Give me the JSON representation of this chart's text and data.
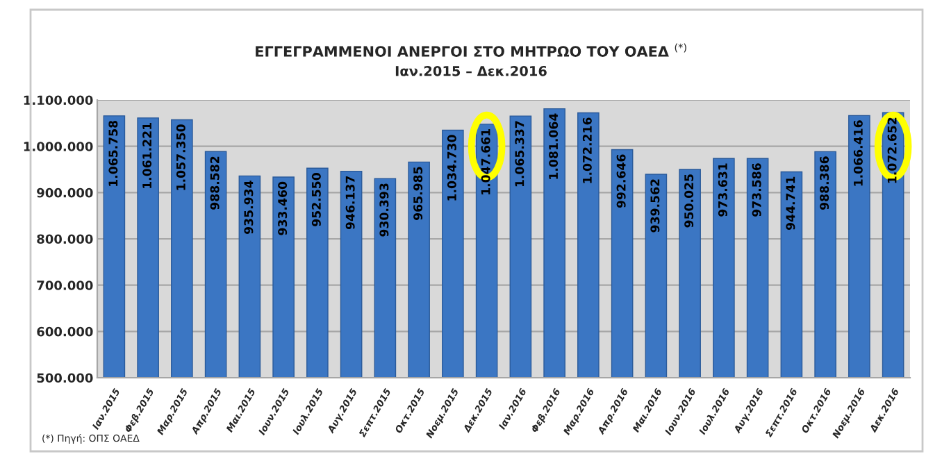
{
  "chart_data": {
    "type": "bar",
    "title": "ΕΓΓΕΓΡΑΜΜΕΝΟΙ ΑΝΕΡΓΟΙ ΣΤΟ ΜΗΤΡΩΟ ΤΟΥ ΟΑΕΔ $^{(*)}$",
    "subtitle": "Ιαν.2015 – Δεκ.2016",
    "categories": [
      "Ιαν.2015",
      "Φεβ.2015",
      "Μαρ.2015",
      "Απρ.2015",
      "Μαι.2015",
      "Ιουν.2015",
      "Ιουλ.2015",
      "Αυγ.2015",
      "Σεπτ.2015",
      "Οκτ.2015",
      "Νοεμ.2015",
      "Δεκ.2015",
      "Ιαν.2016",
      "Φεβ.2016",
      "Μαρ.2016",
      "Απρ.2016",
      "Μαι.2016",
      "Ιουν.2016",
      "Ιουλ.2016",
      "Αυγ.2016",
      "Σεπτ.2016",
      "Οκτ.2016",
      "Νοεμ.2016",
      "Δεκ.2016"
    ],
    "values": [
      1065758,
      1061221,
      1057350,
      988582,
      935934,
      933460,
      952550,
      946137,
      930393,
      965985,
      1034730,
      1047661,
      1065337,
      1081064,
      1072216,
      992646,
      939562,
      950025,
      973631,
      973586,
      944741,
      988386,
      1066416,
      1072652
    ],
    "value_labels": [
      "1.065.758",
      "1.061.221",
      "1.057.350",
      "988.582",
      "935.934",
      "933.460",
      "952.550",
      "946.137",
      "930.393",
      "965.985",
      "1.034.730",
      "1.047.661",
      "1.065.337",
      "1.081.064",
      "1.072.216",
      "992.646",
      "939.562",
      "950.025",
      "973.631",
      "973.586",
      "944.741",
      "988.386",
      "1.066.416",
      "1.072.652"
    ],
    "color": "#3b76c3",
    "ylim": [
      500000,
      1100000
    ],
    "yticks": [
      {
        "value": 500000,
        "label": "500.000"
      },
      {
        "value": 600000,
        "label": "600.000"
      },
      {
        "value": 700000,
        "label": "700.000"
      },
      {
        "value": 800000,
        "label": "800.000"
      },
      {
        "value": 900000,
        "label": "900.000"
      },
      {
        "value": 1000000,
        "label": "1.000.000"
      },
      {
        "value": 1100000,
        "label": "1.100.000"
      }
    ],
    "grid": "y",
    "annotations": [
      "(*) Πηγή: ΟΠΣ ΟΑΕΔ"
    ]
  }
}
